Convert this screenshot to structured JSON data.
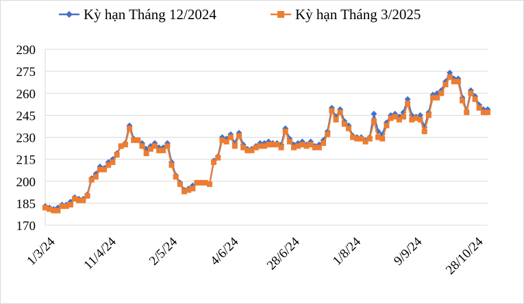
{
  "chart_data": {
    "type": "line",
    "title": "",
    "xlabel": "",
    "ylabel": "",
    "ylim": [
      170,
      290
    ],
    "yticks": [
      "170",
      "185",
      "200",
      "215",
      "230",
      "245",
      "260",
      "275",
      "290"
    ],
    "xticks": [
      "1/3/24",
      "11/4/24",
      "2/5/24",
      "4/6/24",
      "28/6/24",
      "1/8/24",
      "9/9/24",
      "28/10/24"
    ],
    "grid": true,
    "legend_position": "top",
    "series": [
      {
        "name": "Kỳ hạn Tháng 12/2024",
        "color": "#4472c4",
        "marker": "diamond",
        "values": [
          183,
          182,
          181,
          182,
          184,
          184,
          186,
          189,
          188,
          188,
          191,
          202,
          205,
          210,
          209,
          213,
          215,
          219,
          224,
          226,
          238,
          229,
          228,
          226,
          222,
          224,
          226,
          223,
          223,
          226,
          213,
          204,
          199,
          194,
          195,
          197,
          199,
          199,
          199,
          198,
          214,
          217,
          230,
          229,
          232,
          226,
          233,
          225,
          222,
          222,
          224,
          226,
          226,
          227,
          226,
          226,
          225,
          236,
          229,
          225,
          226,
          227,
          225,
          227,
          224,
          225,
          228,
          234,
          250,
          244,
          249,
          241,
          238,
          231,
          230,
          230,
          228,
          230,
          246,
          234,
          232,
          240,
          245,
          246,
          244,
          247,
          256,
          245,
          244,
          245,
          237,
          247,
          259,
          260,
          262,
          268,
          274,
          270,
          270,
          257,
          248,
          262,
          258,
          252,
          249,
          249
        ]
      },
      {
        "name": "Kỳ hạn Tháng 3/2025",
        "color": "#ed7d31",
        "marker": "square",
        "values": [
          182,
          181,
          180,
          180,
          183,
          183,
          184,
          188,
          187,
          187,
          190,
          201,
          203,
          208,
          208,
          211,
          213,
          218,
          224,
          225,
          236,
          228,
          228,
          224,
          219,
          222,
          224,
          221,
          221,
          224,
          211,
          203,
          198,
          193,
          194,
          195,
          199,
          199,
          199,
          198,
          213,
          216,
          228,
          227,
          230,
          224,
          231,
          223,
          221,
          221,
          223,
          224,
          224,
          225,
          225,
          225,
          223,
          234,
          227,
          223,
          224,
          225,
          224,
          225,
          223,
          223,
          226,
          232,
          248,
          242,
          247,
          239,
          236,
          230,
          229,
          229,
          227,
          229,
          241,
          230,
          229,
          238,
          243,
          244,
          242,
          244,
          253,
          242,
          243,
          242,
          234,
          245,
          257,
          257,
          260,
          266,
          271,
          268,
          268,
          255,
          247,
          260,
          256,
          250,
          247,
          247
        ]
      }
    ]
  }
}
